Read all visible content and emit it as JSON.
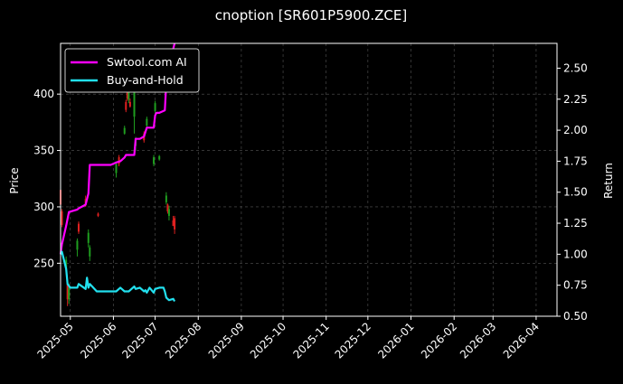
{
  "title": "cnoption [SR601P5900.ZCE]",
  "colors": {
    "background": "#000000",
    "text": "#ffffff",
    "grid": "#555555",
    "up": "#1f9e1f",
    "down": "#e02020",
    "ai_line": "#ff00ff",
    "bh_line": "#22e0ee"
  },
  "chart_data": {
    "type": "line",
    "title": "cnoption [SR601P5900.ZCE]",
    "xlabel": "",
    "ylabel_left": "Price",
    "ylabel_right": "Return",
    "x_range": [
      "2025-04-24",
      "2026-04-16"
    ],
    "y_left_range": [
      203,
      445
    ],
    "y_right_range": [
      0.5,
      2.7
    ],
    "y_left_ticks": [
      250,
      300,
      350,
      400
    ],
    "y_right_ticks": [
      "0.50",
      "0.75",
      "1.00",
      "1.25",
      "1.50",
      "1.75",
      "2.00",
      "2.25",
      "2.50"
    ],
    "x_ticks": [
      "2025-05",
      "2025-06",
      "2025-07",
      "2025-08",
      "2025-09",
      "2025-10",
      "2025-11",
      "2025-12",
      "2026-01",
      "2026-02",
      "2026-03",
      "2026-04"
    ],
    "grid": true,
    "legend_position": "top-left",
    "candles": [
      {
        "date": "2025-04-24",
        "open": 315,
        "close": 302,
        "high": 316,
        "low": 290
      },
      {
        "date": "2025-04-25",
        "open": 296,
        "close": 284,
        "high": 298,
        "low": 282
      },
      {
        "date": "2025-04-28",
        "open": 245,
        "close": 253,
        "high": 256,
        "low": 240
      },
      {
        "date": "2025-04-29",
        "open": 232,
        "close": 218,
        "high": 234,
        "low": 212
      },
      {
        "date": "2025-04-30",
        "open": 218,
        "close": 228,
        "high": 232,
        "low": 214
      },
      {
        "date": "2025-05-06",
        "open": 262,
        "close": 270,
        "high": 272,
        "low": 256
      },
      {
        "date": "2025-05-07",
        "open": 285,
        "close": 278,
        "high": 287,
        "low": 276
      },
      {
        "date": "2025-05-12",
        "open": 307,
        "close": 302,
        "high": 310,
        "low": 300
      },
      {
        "date": "2025-05-14",
        "open": 268,
        "close": 277,
        "high": 280,
        "low": 264
      },
      {
        "date": "2025-05-15",
        "open": 256,
        "close": 264,
        "high": 266,
        "low": 252
      },
      {
        "date": "2025-05-21",
        "open": 294,
        "close": 292,
        "high": 295,
        "low": 291
      },
      {
        "date": "2025-06-03",
        "open": 330,
        "close": 338,
        "high": 340,
        "low": 326
      },
      {
        "date": "2025-06-05",
        "open": 344,
        "close": 338,
        "high": 346,
        "low": 336
      },
      {
        "date": "2025-06-09",
        "open": 365,
        "close": 370,
        "high": 372,
        "low": 364
      },
      {
        "date": "2025-06-10",
        "open": 393,
        "close": 386,
        "high": 395,
        "low": 384
      },
      {
        "date": "2025-06-11",
        "open": 405,
        "close": 396,
        "high": 408,
        "low": 394
      },
      {
        "date": "2025-06-12",
        "open": 395,
        "close": 402,
        "high": 404,
        "low": 392
      },
      {
        "date": "2025-06-13",
        "open": 393,
        "close": 389,
        "high": 396,
        "low": 388
      },
      {
        "date": "2025-06-16",
        "open": 380,
        "close": 408,
        "high": 412,
        "low": 365
      },
      {
        "date": "2025-06-17",
        "open": 354,
        "close": 360,
        "high": 362,
        "low": 350
      },
      {
        "date": "2025-06-23",
        "open": 365,
        "close": 359,
        "high": 367,
        "low": 357
      },
      {
        "date": "2025-06-25",
        "open": 372,
        "close": 378,
        "high": 380,
        "low": 368
      },
      {
        "date": "2025-06-30",
        "open": 338,
        "close": 344,
        "high": 346,
        "low": 336
      },
      {
        "date": "2025-07-01",
        "open": 385,
        "close": 392,
        "high": 394,
        "low": 382
      },
      {
        "date": "2025-07-04",
        "open": 342,
        "close": 345,
        "high": 346,
        "low": 341
      },
      {
        "date": "2025-07-09",
        "open": 304,
        "close": 310,
        "high": 313,
        "low": 302
      },
      {
        "date": "2025-07-10",
        "open": 302,
        "close": 296,
        "high": 303,
        "low": 294
      },
      {
        "date": "2025-07-11",
        "open": 292,
        "close": 298,
        "high": 301,
        "low": 288
      },
      {
        "date": "2025-07-14",
        "open": 288,
        "close": 283,
        "high": 292,
        "low": 284
      },
      {
        "date": "2025-07-15",
        "open": 290,
        "close": 280,
        "high": 292,
        "low": 276
      }
    ],
    "series": [
      {
        "name": "Swtool.com AI",
        "axis": "right",
        "x": [
          "2025-04-24",
          "2025-04-25",
          "2025-04-28",
          "2025-04-30",
          "2025-05-06",
          "2025-05-07",
          "2025-05-12",
          "2025-05-14",
          "2025-05-15",
          "2025-05-20",
          "2025-05-23",
          "2025-05-30",
          "2025-06-03",
          "2025-06-06",
          "2025-06-09",
          "2025-06-10",
          "2025-06-16",
          "2025-06-17",
          "2025-06-20",
          "2025-06-23",
          "2025-06-25",
          "2025-06-30",
          "2025-07-01",
          "2025-07-02",
          "2025-07-04",
          "2025-07-08",
          "2025-07-09",
          "2025-07-10",
          "2025-07-15"
        ],
        "values": [
          1.0,
          1.08,
          1.23,
          1.34,
          1.36,
          1.37,
          1.4,
          1.49,
          1.72,
          1.72,
          1.72,
          1.72,
          1.74,
          1.75,
          1.78,
          1.8,
          1.8,
          1.93,
          1.93,
          1.95,
          2.02,
          2.02,
          2.12,
          2.14,
          2.14,
          2.16,
          2.38,
          2.48,
          2.7
        ]
      },
      {
        "name": "Buy-and-Hold",
        "axis": "right",
        "x": [
          "2025-04-24",
          "2025-04-25",
          "2025-04-28",
          "2025-04-29",
          "2025-05-01",
          "2025-05-06",
          "2025-05-07",
          "2025-05-12",
          "2025-05-13",
          "2025-05-14",
          "2025-05-15",
          "2025-05-20",
          "2025-05-23",
          "2025-05-28",
          "2025-06-03",
          "2025-06-06",
          "2025-06-09",
          "2025-06-10",
          "2025-06-12",
          "2025-06-16",
          "2025-06-17",
          "2025-06-20",
          "2025-06-23",
          "2025-06-24",
          "2025-06-25",
          "2025-06-27",
          "2025-06-30",
          "2025-07-01",
          "2025-07-04",
          "2025-07-07",
          "2025-07-08",
          "2025-07-09",
          "2025-07-10",
          "2025-07-11",
          "2025-07-14",
          "2025-07-15"
        ],
        "values": [
          1.0,
          1.02,
          0.88,
          0.76,
          0.73,
          0.73,
          0.76,
          0.72,
          0.81,
          0.73,
          0.76,
          0.7,
          0.7,
          0.7,
          0.7,
          0.73,
          0.7,
          0.7,
          0.7,
          0.74,
          0.72,
          0.73,
          0.7,
          0.71,
          0.69,
          0.73,
          0.69,
          0.72,
          0.73,
          0.73,
          0.7,
          0.65,
          0.64,
          0.63,
          0.64,
          0.62
        ]
      }
    ]
  }
}
